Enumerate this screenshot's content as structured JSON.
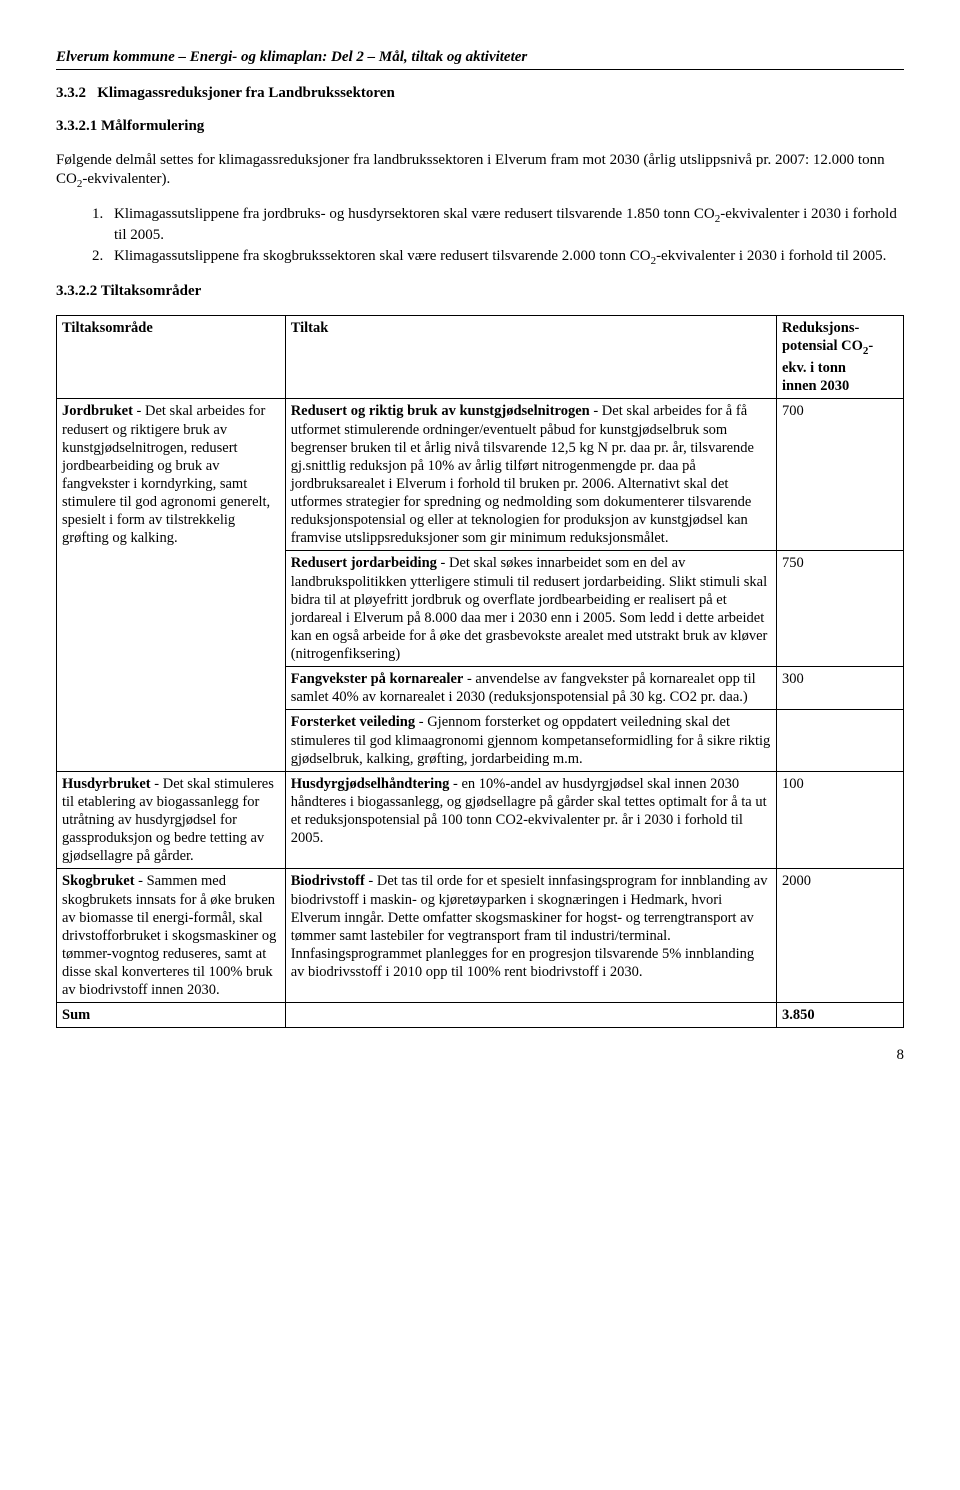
{
  "header": "Elverum kommune – Energi- og klimaplan: Del 2 – Mål, tiltak og aktiviteter",
  "section_num": "3.3.2",
  "section_title": "Klimagassreduksjoner fra Landbrukssektoren",
  "sub1_num": "3.3.2.1",
  "sub1_title": "Målformulering",
  "intro_para": "Følgende delmål settes for klimagassreduksjoner fra landbrukssektoren i Elverum fram mot 2030 (årlig utslippsnivå pr. 2007: 12.000 tonn CO",
  "intro_para_tail": "-ekvivalenter).",
  "goals": [
    {
      "n": "1.",
      "pre": "Klimagassutslippene fra jordbruks- og husdyrsektoren skal være redusert tilsvarende 1.850 tonn CO",
      "post": "-ekvivalenter i 2030 i forhold til 2005."
    },
    {
      "n": "2.",
      "pre": "Klimagassutslippene fra skogbrukssektoren skal være redusert tilsvarende 2.000 tonn CO",
      "post": "-ekvivalenter i 2030 i forhold til 2005."
    }
  ],
  "sub2_num": "3.3.2.2",
  "sub2_title": "Tiltaksområder",
  "table_headers": {
    "area": "Tiltaksområde",
    "tiltak": "Tiltak",
    "red_l1": "Reduksjons-",
    "red_l2": "potensial CO",
    "red_l3": "-",
    "red_l4": "ekv. i tonn",
    "red_l5": "innen 2030"
  },
  "jordbruket_bold": "Jordbruket",
  "jordbruket_rest": " - Det skal arbeides for redusert og riktigere bruk av kunstgjødselnitrogen, redusert jordbearbeiding og bruk av fangvekster i korndyrking, samt stimulere til god agronomi generelt, spesielt i form av tilstrekkelig grøfting og kalking.",
  "row1_t_bold": "Redusert og riktig bruk av kunstgjødselnitrogen",
  "row1_t_rest": " - Det skal arbeides for å få utformet stimulerende ordninger/eventuelt påbud for kunstgjødselbruk som begrenser bruken til et årlig nivå tilsvarende 12,5 kg N pr. daa pr. år, tilsvarende gj.snittlig reduksjon på 10% av årlig tilført nitrogenmengde pr. daa på jordbruksarealet i Elverum i forhold til bruken pr. 2006. Alternativt skal det utformes strategier for spredning og nedmolding som dokumenterer tilsvarende reduksjonspotensial og eller at teknologien for produksjon av kunstgjødsel kan framvise utslippsreduksjoner som gir minimum reduksjonsmålet.",
  "row1_val": "700",
  "row2_t_bold": "Redusert jordarbeiding",
  "row2_t_rest": " - Det skal søkes innarbeidet som en del av landbrukspolitikken ytterligere stimuli til redusert jordarbeiding. Slikt stimuli skal bidra til at pløyefritt jordbruk og overflate jordbearbeiding er realisert på et jordareal i Elverum på 8.000 daa mer i 2030 enn i 2005. Som ledd i dette arbeidet kan en også arbeide for å øke det grasbevokste arealet med utstrakt bruk av kløver (nitrogenfiksering)",
  "row2_val": "750",
  "row3_t_bold": "Fangvekster på kornarealer",
  "row3_t_rest": " - anvendelse av fangvekster på kornarealet opp til samlet 40% av kornarealet i 2030 (reduksjonspotensial på 30 kg. CO2 pr. daa.)",
  "row3_val": "300",
  "row4_t_bold": "Forsterket veileding",
  "row4_t_rest": " - Gjennom forsterket og oppdatert veiledning skal det stimuleres til god klimaagronomi gjennom kompetanseformidling for å sikre riktig gjødselbruk, kalking, grøfting, jordarbeiding m.m.",
  "husdyr_bold": "Husdyrbruket",
  "husdyr_rest": " - Det skal stimuleres til etablering av biogassanlegg for utråtning av husdyrgjødsel for gassproduksjon og bedre tetting av gjødsellagre på gårder.",
  "row5_t_bold": "Husdyrgjødselhåndtering",
  "row5_t_rest": " - en 10%-andel av husdyrgjødsel skal innen 2030 håndteres i biogassanlegg, og gjødsellagre på gårder skal tettes optimalt for å ta ut et reduksjonspotensial på  100 tonn CO2-ekvivalenter pr. år i 2030 i forhold til 2005.",
  "row5_val": "100",
  "skog_bold": "Skogbruket",
  "skog_rest": " - Sammen med skogbrukets innsats for å øke bruken av biomasse til energi-formål, skal drivstofforbruket i skogsmaskiner og tømmer-vogntog reduseres, samt at disse skal konverteres til 100% bruk av biodrivstoff innen 2030.",
  "row6_t_bold": "Biodrivstoff",
  "row6_t_rest": " - Det tas til orde for et spesielt innfasingsprogram for innblanding av biodrivstoff i maskin- og kjøretøyparken i skognæringen i Hedmark, hvori Elverum inngår. Dette omfatter skogsmaskiner for hogst- og terrengtransport av tømmer samt lastebiler for vegtransport fram til industri/terminal. Innfasingsprogrammet planlegges for en progresjon tilsvarende 5% innblanding av biodrivsstoff i 2010 opp til 100% rent biodrivstoff i 2030.",
  "row6_val": "2000",
  "sum_label": "Sum",
  "sum_val": "3.850",
  "pagenum": "8"
}
